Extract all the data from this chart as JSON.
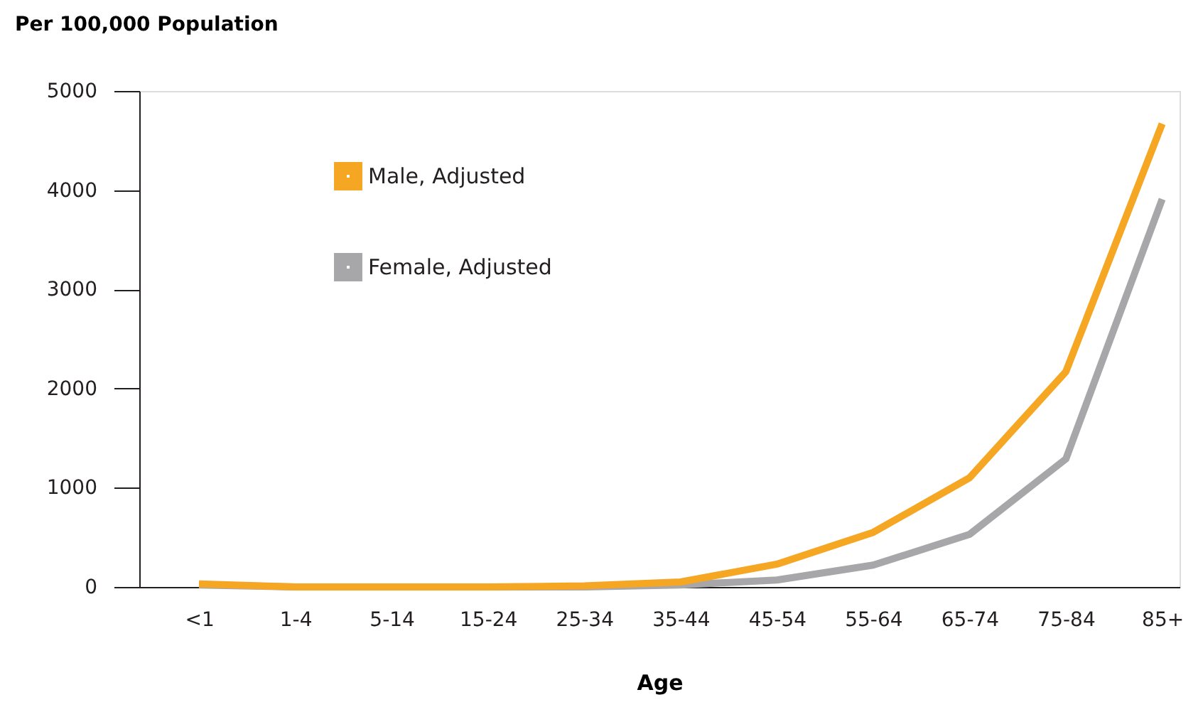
{
  "chart_data": {
    "type": "line",
    "ylabel": "Per 100,000 Population",
    "xlabel": "Age",
    "categories": [
      "<1",
      "1-4",
      "5-14",
      "15-24",
      "25-34",
      "35-44",
      "45-54",
      "55-64",
      "65-74",
      "75-84",
      "85+"
    ],
    "series": [
      {
        "name": "Male, Adjusted",
        "color": "#f5a623",
        "values": [
          30,
          0,
          0,
          0,
          10,
          50,
          230,
          550,
          1100,
          2170,
          4670
        ]
      },
      {
        "name": "Female, Adjusted",
        "color": "#a7a7a9",
        "values": [
          20,
          0,
          0,
          0,
          0,
          20,
          70,
          220,
          530,
          1290,
          3910
        ]
      }
    ],
    "ylim": [
      0,
      5000
    ],
    "yticks": [
      0,
      1000,
      2000,
      3000,
      4000,
      5000
    ],
    "grid": false,
    "legend": "top left",
    "marker": "none",
    "line_style": "solid"
  }
}
